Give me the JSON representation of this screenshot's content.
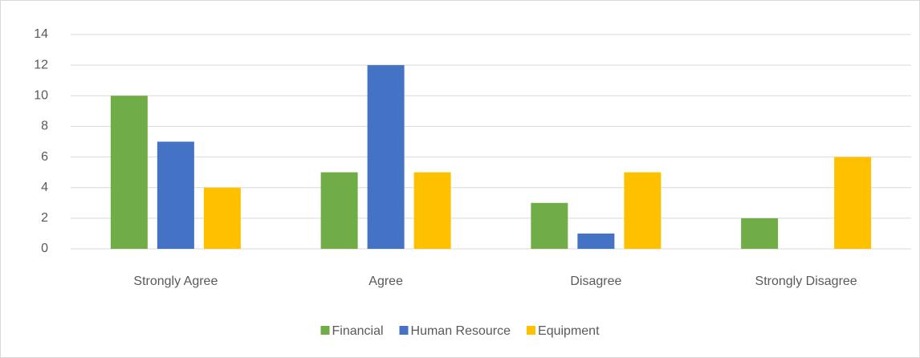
{
  "chart_data": {
    "type": "bar",
    "categories": [
      "Strongly Agree",
      "Agree",
      "Disagree",
      "Strongly Disagree"
    ],
    "series": [
      {
        "name": "Financial",
        "color": "#70ad47",
        "values": [
          10,
          5,
          3,
          2
        ]
      },
      {
        "name": "Human Resource",
        "color": "#4472c4",
        "values": [
          7,
          12,
          1,
          0
        ]
      },
      {
        "name": "Equipment",
        "color": "#ffc000",
        "values": [
          4,
          5,
          5,
          6
        ]
      }
    ],
    "ylim": [
      0,
      14
    ],
    "yticks": [
      0,
      2,
      4,
      6,
      8,
      10,
      12,
      14
    ],
    "grid": true,
    "legend": "bottom"
  }
}
